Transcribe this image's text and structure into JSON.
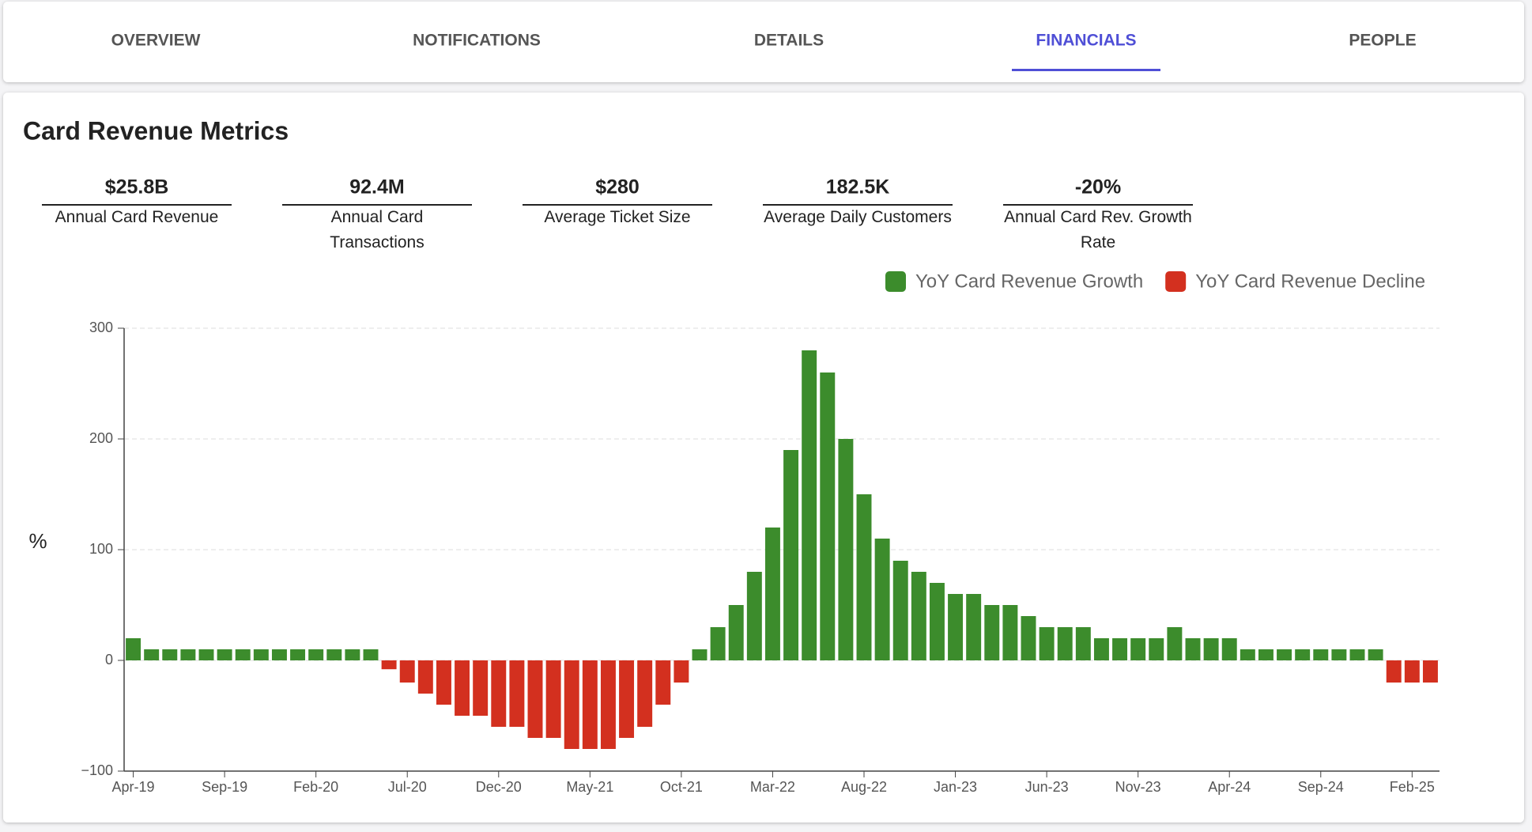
{
  "tabs": [
    "OVERVIEW",
    "NOTIFICATIONS",
    "DETAILS",
    "FINANCIALS",
    "PEOPLE"
  ],
  "active_tab": 3,
  "title": "Card Revenue Metrics",
  "metrics": [
    {
      "value": "$25.8B",
      "label": "Annual Card Revenue"
    },
    {
      "value": "92.4M",
      "label": "Annual Card Transactions"
    },
    {
      "value": "$280",
      "label": "Average Ticket Size"
    },
    {
      "value": "182.5K",
      "label": "Average Daily Customers"
    },
    {
      "value": "-20%",
      "label": "Annual Card Rev. Growth Rate"
    }
  ],
  "chart_data": {
    "type": "bar",
    "y_label": "%",
    "legend": [
      {
        "name": "YoY Card Revenue Growth",
        "color": "#3c8c2c"
      },
      {
        "name": "YoY Card Revenue Decline",
        "color": "#d3301f"
      }
    ],
    "categories": [
      "Apr-19",
      null,
      null,
      null,
      null,
      "Sep-19",
      null,
      null,
      null,
      null,
      "Feb-20",
      null,
      null,
      null,
      null,
      "Jul-20",
      null,
      null,
      null,
      null,
      "Dec-20",
      null,
      null,
      null,
      null,
      "May-21",
      null,
      null,
      null,
      null,
      "Oct-21",
      null,
      null,
      null,
      null,
      "Mar-22",
      null,
      null,
      null,
      null,
      "Aug-22",
      null,
      null,
      null,
      null,
      "Jan-23",
      null,
      null,
      null,
      null,
      "Jun-23",
      null,
      null,
      null,
      null,
      "Nov-23",
      null,
      null,
      null,
      null,
      "Apr-24",
      null,
      null,
      null,
      null,
      "Sep-24",
      null,
      null,
      null,
      null,
      "Feb-25",
      null
    ],
    "values": [
      20,
      10,
      10,
      10,
      10,
      10,
      10,
      10,
      10,
      10,
      10,
      10,
      10,
      10,
      -8,
      -20,
      -30,
      -40,
      -50,
      -50,
      -60,
      -60,
      -70,
      -70,
      -80,
      -80,
      -80,
      -70,
      -60,
      -40,
      -20,
      10,
      30,
      50,
      80,
      120,
      190,
      280,
      260,
      200,
      150,
      110,
      90,
      80,
      70,
      60,
      60,
      50,
      50,
      40,
      30,
      30,
      30,
      20,
      20,
      20,
      20,
      30,
      20,
      20,
      20,
      10,
      10,
      10,
      10,
      10,
      10,
      10,
      10,
      -20,
      -20,
      -20
    ],
    "ylim": [
      -100,
      300
    ],
    "yticks": [
      {
        "value": -100,
        "label": "−100"
      },
      0,
      100,
      200,
      300
    ],
    "grid": true
  }
}
